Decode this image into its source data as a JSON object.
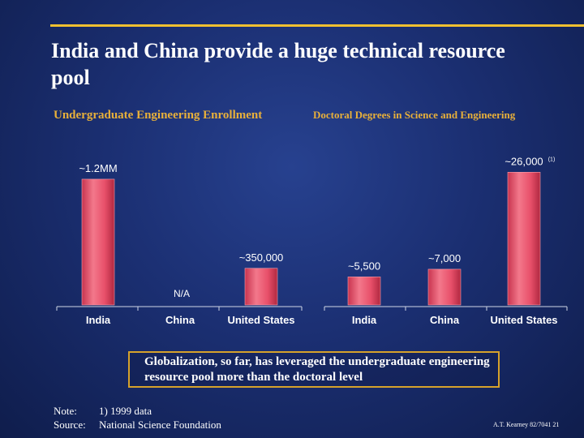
{
  "slide": {
    "title": "India and China provide a huge technical resource pool",
    "callout": "Globalization, so far, has leveraged the undergraduate engineering resource pool more than the doctoral level",
    "note_label": "Note:",
    "note_text": "1) 1999 data",
    "source_label": "Source:",
    "source_text": "National Science Foundation",
    "footer": "A.T. Kearney 82/7041 21",
    "colors": {
      "accent": "#f0c030",
      "subtitle": "#e8b03a",
      "bar": "#e8506a",
      "bar_dark": "#b02840"
    }
  },
  "chart_data": [
    {
      "type": "bar",
      "title": "Undergraduate Engineering Enrollment",
      "categories": [
        "India",
        "China",
        "United States"
      ],
      "values": [
        1200000,
        null,
        350000
      ],
      "labels": [
        "~1.2MM",
        "N/A",
        "~350,000"
      ],
      "ylim": [
        0,
        1300000
      ]
    },
    {
      "type": "bar",
      "title": "Doctoral Degrees in Science and Engineering",
      "categories": [
        "India",
        "China",
        "United States"
      ],
      "values": [
        5500,
        7000,
        26000
      ],
      "labels": [
        "~5,500",
        "~7,000",
        "~26,000"
      ],
      "footnote": "(1)",
      "ylim": [
        0,
        27000
      ]
    }
  ]
}
